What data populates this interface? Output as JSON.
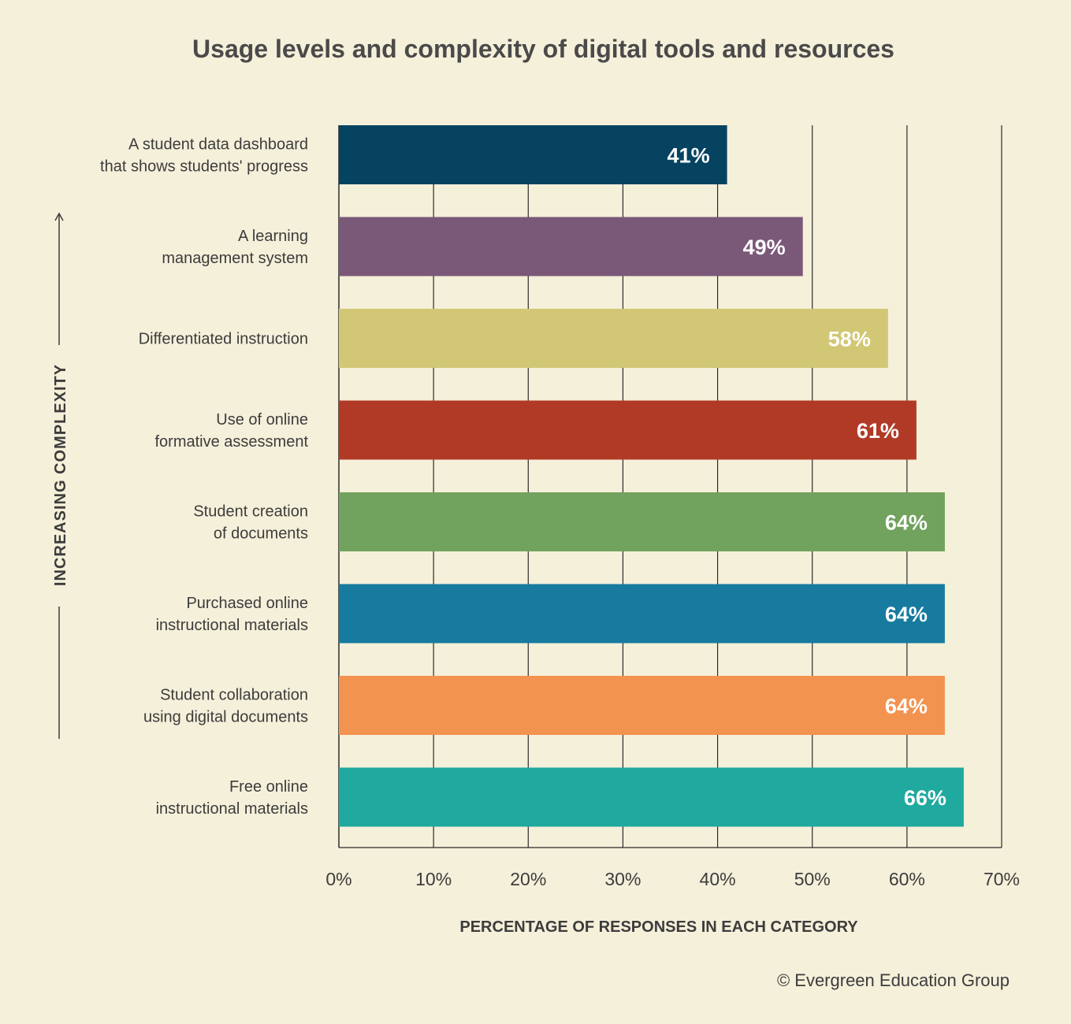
{
  "title": "Usage levels and complexity of digital tools and resources",
  "credit": "© Evergreen Education Group",
  "chart_data": {
    "type": "bar",
    "orientation": "horizontal",
    "title": "Usage levels and complexity of digital tools and resources",
    "xlabel": "PERCENTAGE OF RESPONSES IN  EACH CATEGORY",
    "ylabel": "INCREASING COMPLEXITY",
    "xlim": [
      0,
      70
    ],
    "ticks": [
      0,
      10,
      20,
      30,
      40,
      50,
      60,
      70
    ],
    "tick_labels": [
      "0%",
      "10%",
      "20%",
      "30%",
      "40%",
      "50%",
      "60%",
      "70%"
    ],
    "grid": true,
    "categories": [
      [
        "A student data dashboard",
        "that shows students' progress"
      ],
      [
        "A learning",
        "management system"
      ],
      [
        "Differentiated instruction"
      ],
      [
        "Use of online",
        "formative assessment"
      ],
      [
        "Student creation",
        "of documents"
      ],
      [
        "Purchased online",
        "instructional materials"
      ],
      [
        "Student collaboration",
        "using digital documents"
      ],
      [
        "Free online",
        "instructional materials"
      ]
    ],
    "values": [
      41,
      49,
      58,
      61,
      64,
      64,
      64,
      66
    ],
    "value_labels": [
      "41%",
      "49%",
      "58%",
      "61%",
      "64%",
      "64%",
      "64%",
      "66%"
    ],
    "colors": [
      "#054361",
      "#7a5878",
      "#d1c775",
      "#b13a27",
      "#71a25e",
      "#167b9f",
      "#f39350",
      "#20a99f"
    ]
  }
}
